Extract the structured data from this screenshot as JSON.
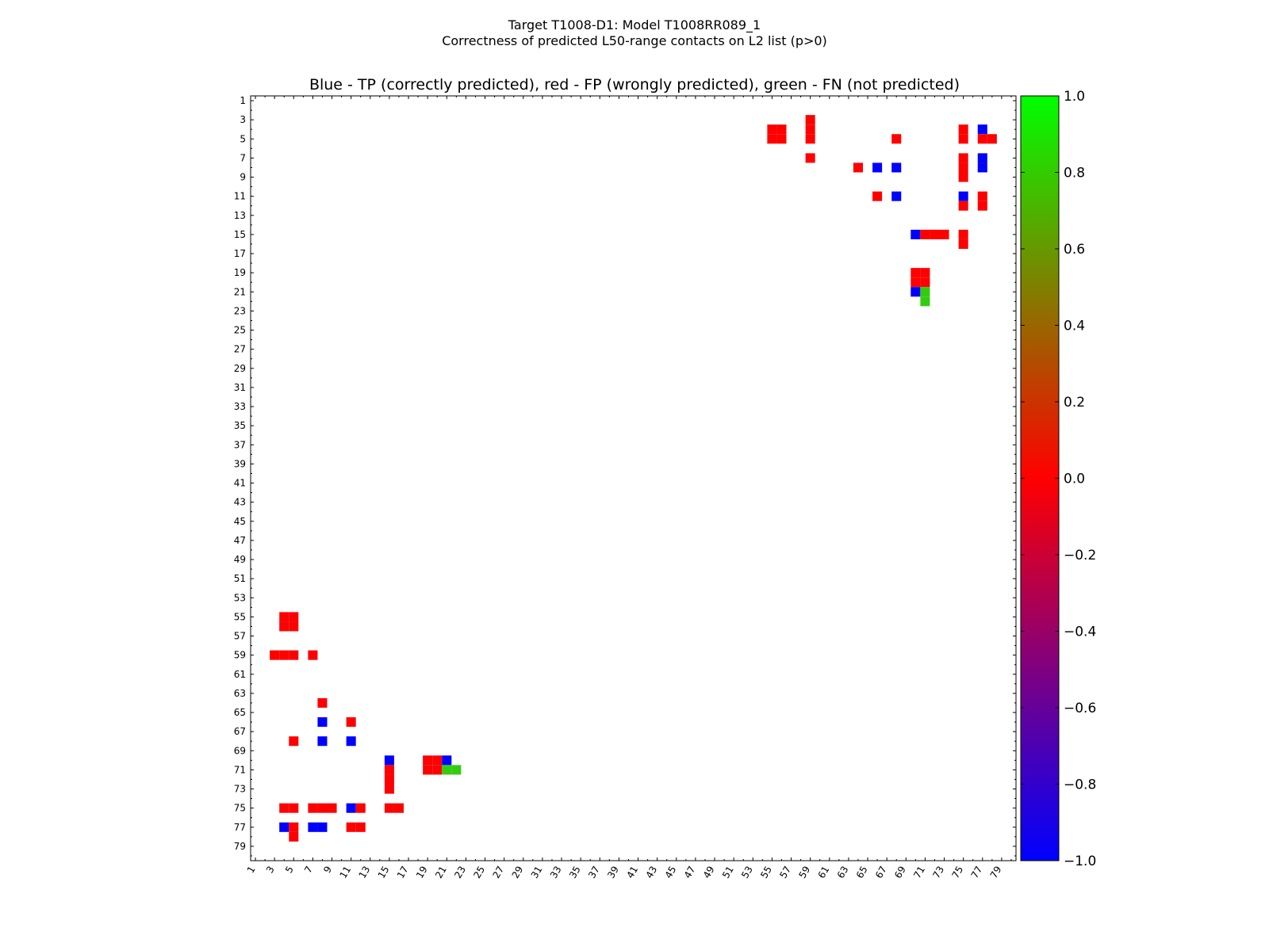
{
  "chart_data": {
    "type": "heatmap",
    "suptitle_line1": "Target T1008-D1: Model T1008RR089_1",
    "suptitle_line2": "Correctness of predicted L50-range contacts on L2 list (p>0)",
    "title": "Blue - TP (correctly predicted), red - FP (wrongly predicted), green - FN (not predicted)",
    "n_residues": 80,
    "x_tick_labels": [
      "1",
      "3",
      "5",
      "7",
      "9",
      "11",
      "13",
      "15",
      "17",
      "19",
      "21",
      "23",
      "25",
      "27",
      "29",
      "31",
      "33",
      "35",
      "37",
      "39",
      "41",
      "43",
      "45",
      "47",
      "49",
      "51",
      "53",
      "55",
      "57",
      "59",
      "61",
      "63",
      "65",
      "67",
      "69",
      "71",
      "73",
      "75",
      "77",
      "79"
    ],
    "y_tick_labels": [
      "1",
      "3",
      "5",
      "7",
      "9",
      "11",
      "13",
      "15",
      "17",
      "19",
      "21",
      "23",
      "25",
      "27",
      "29",
      "31",
      "33",
      "35",
      "37",
      "39",
      "41",
      "43",
      "45",
      "47",
      "49",
      "51",
      "53",
      "55",
      "57",
      "59",
      "61",
      "63",
      "65",
      "67",
      "69",
      "71",
      "73",
      "75",
      "77",
      "79"
    ],
    "colors": {
      "tp": "#0000ff",
      "fp": "#ff0000",
      "fn": "#33cc11",
      "frame": "#000000",
      "background": "#ffffff"
    },
    "colorbar": {
      "range": [
        -1.0,
        1.0
      ],
      "tick_labels": [
        "1.0",
        "0.8",
        "0.6",
        "0.4",
        "0.2",
        "0.0",
        "−0.2",
        "−0.4",
        "−0.6",
        "−0.8",
        "−1.0"
      ],
      "gradient_colors": [
        "#0000ff",
        "#ff0000",
        "#00ff00"
      ]
    },
    "cells": [
      {
        "i": 4,
        "j": 55,
        "status": "fp"
      },
      {
        "i": 4,
        "j": 56,
        "status": "fp"
      },
      {
        "i": 5,
        "j": 55,
        "status": "fp"
      },
      {
        "i": 5,
        "j": 56,
        "status": "fp"
      },
      {
        "i": 3,
        "j": 59,
        "status": "fp"
      },
      {
        "i": 4,
        "j": 59,
        "status": "fp"
      },
      {
        "i": 5,
        "j": 59,
        "status": "fp"
      },
      {
        "i": 7,
        "j": 59,
        "status": "fp"
      },
      {
        "i": 5,
        "j": 68,
        "status": "fp"
      },
      {
        "i": 4,
        "j": 75,
        "status": "fp"
      },
      {
        "i": 5,
        "j": 75,
        "status": "fp"
      },
      {
        "i": 4,
        "j": 77,
        "status": "tp"
      },
      {
        "i": 5,
        "j": 77,
        "status": "fp"
      },
      {
        "i": 5,
        "j": 78,
        "status": "fp"
      },
      {
        "i": 8,
        "j": 64,
        "status": "fp"
      },
      {
        "i": 8,
        "j": 66,
        "status": "tp"
      },
      {
        "i": 8,
        "j": 68,
        "status": "tp"
      },
      {
        "i": 7,
        "j": 75,
        "status": "fp"
      },
      {
        "i": 8,
        "j": 75,
        "status": "fp"
      },
      {
        "i": 9,
        "j": 75,
        "status": "fp"
      },
      {
        "i": 7,
        "j": 77,
        "status": "tp"
      },
      {
        "i": 8,
        "j": 77,
        "status": "tp"
      },
      {
        "i": 11,
        "j": 66,
        "status": "fp"
      },
      {
        "i": 11,
        "j": 68,
        "status": "tp"
      },
      {
        "i": 11,
        "j": 75,
        "status": "tp"
      },
      {
        "i": 12,
        "j": 75,
        "status": "fp"
      },
      {
        "i": 11,
        "j": 77,
        "status": "fp"
      },
      {
        "i": 12,
        "j": 77,
        "status": "fp"
      },
      {
        "i": 15,
        "j": 70,
        "status": "tp"
      },
      {
        "i": 15,
        "j": 71,
        "status": "fp"
      },
      {
        "i": 15,
        "j": 72,
        "status": "fp"
      },
      {
        "i": 15,
        "j": 73,
        "status": "fp"
      },
      {
        "i": 15,
        "j": 75,
        "status": "fp"
      },
      {
        "i": 16,
        "j": 75,
        "status": "fp"
      },
      {
        "i": 19,
        "j": 70,
        "status": "fp"
      },
      {
        "i": 19,
        "j": 71,
        "status": "fp"
      },
      {
        "i": 20,
        "j": 70,
        "status": "fp"
      },
      {
        "i": 20,
        "j": 71,
        "status": "fp"
      },
      {
        "i": 21,
        "j": 70,
        "status": "tp"
      },
      {
        "i": 21,
        "j": 71,
        "status": "fn"
      },
      {
        "i": 22,
        "j": 71,
        "status": "fn"
      }
    ]
  }
}
